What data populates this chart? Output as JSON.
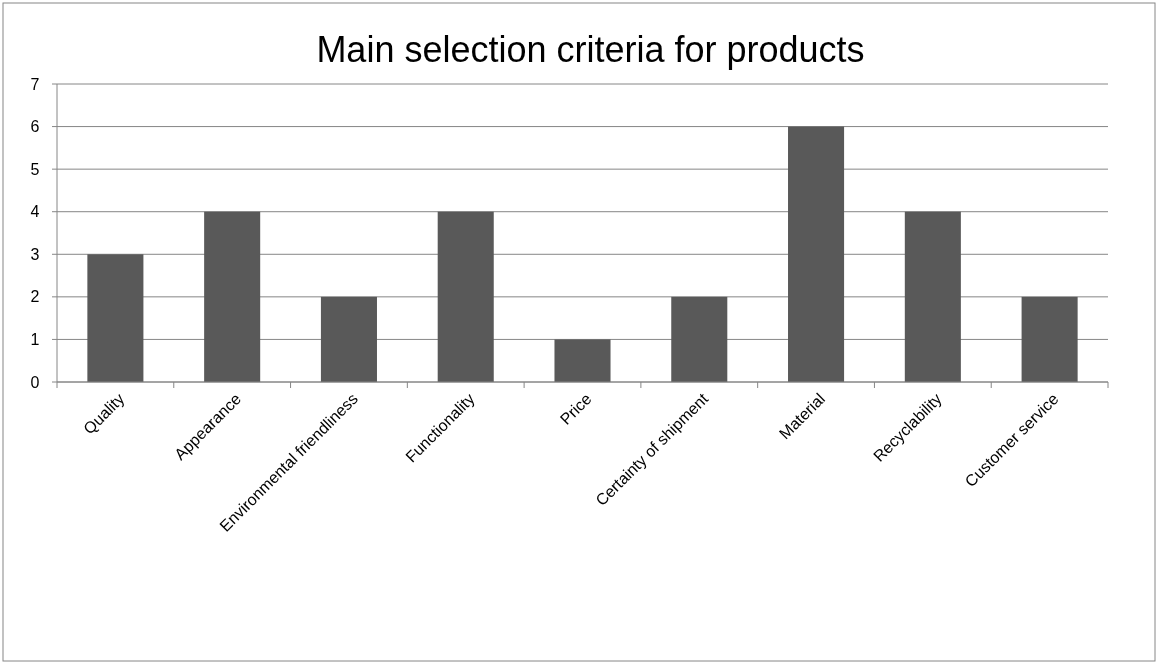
{
  "chart_data": {
    "type": "bar",
    "title": "Main selection criteria for products",
    "categories": [
      "Quality",
      "Appearance",
      "Environmental friendliness",
      "Functionality",
      "Price",
      "Certainty of shipment",
      "Material",
      "Recyclability",
      "Customer service"
    ],
    "values": [
      3,
      4,
      2,
      4,
      1,
      2,
      6,
      4,
      2
    ],
    "color": "#595959",
    "ylim": [
      0,
      7
    ],
    "yticks": [
      0,
      1,
      2,
      3,
      4,
      5,
      6,
      7
    ],
    "grid": "y"
  }
}
